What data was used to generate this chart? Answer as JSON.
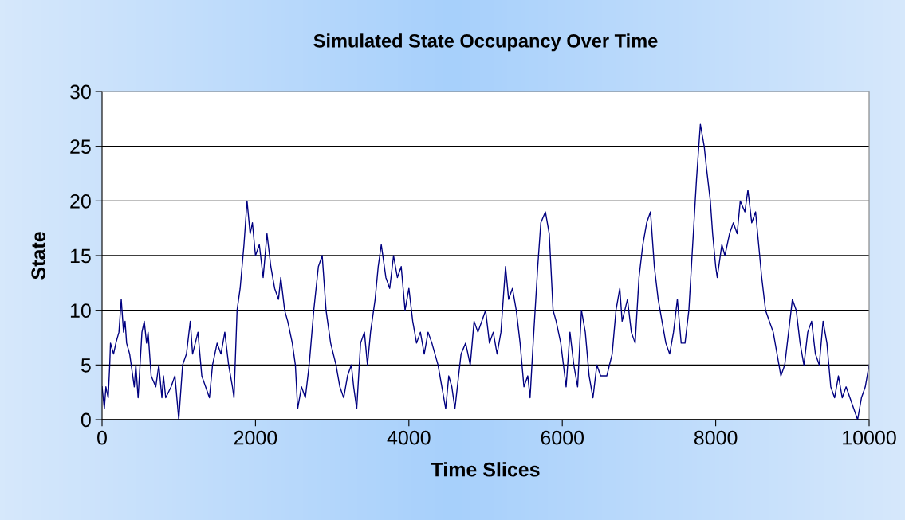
{
  "chart_data": {
    "type": "line",
    "title": "Simulated State Occupancy Over Time",
    "xlabel": "Time Slices",
    "ylabel": "State",
    "xlim": [
      0,
      10000
    ],
    "xticks": [
      0,
      2000,
      4000,
      6000,
      8000,
      10000
    ],
    "ylim": [
      0,
      30
    ],
    "yticks": [
      0,
      5,
      10,
      15,
      20,
      25,
      30
    ],
    "grid": "y",
    "marker": "none",
    "line_style": "solid",
    "series": [
      {
        "color": "#000080",
        "x": [
          0,
          30,
          50,
          80,
          100,
          110,
          150,
          180,
          220,
          240,
          250,
          280,
          300,
          320,
          360,
          400,
          420,
          440,
          470,
          520,
          550,
          580,
          600,
          640,
          700,
          740,
          780,
          800,
          830,
          900,
          950,
          1000,
          1050,
          1100,
          1150,
          1180,
          1250,
          1300,
          1350,
          1400,
          1440,
          1500,
          1550,
          1600,
          1650,
          1700,
          1720,
          1760,
          1800,
          1850,
          1870,
          1890,
          1930,
          1960,
          2000,
          2050,
          2100,
          2150,
          2200,
          2250,
          2300,
          2330,
          2380,
          2420,
          2480,
          2520,
          2550,
          2600,
          2650,
          2700,
          2760,
          2820,
          2870,
          2920,
          2980,
          3050,
          3100,
          3150,
          3200,
          3250,
          3280,
          3320,
          3370,
          3420,
          3460,
          3500,
          3560,
          3600,
          3640,
          3700,
          3750,
          3800,
          3850,
          3900,
          3950,
          4000,
          4050,
          4100,
          4150,
          4200,
          4250,
          4300,
          4380,
          4430,
          4480,
          4520,
          4560,
          4600,
          4680,
          4740,
          4800,
          4850,
          4900,
          4950,
          5000,
          5050,
          5100,
          5150,
          5200,
          5260,
          5300,
          5350,
          5400,
          5450,
          5500,
          5550,
          5580,
          5620,
          5680,
          5720,
          5780,
          5830,
          5880,
          5920,
          5980,
          6050,
          6100,
          6150,
          6200,
          6250,
          6300,
          6350,
          6400,
          6450,
          6500,
          6580,
          6650,
          6700,
          6750,
          6780,
          6850,
          6900,
          6950,
          7000,
          7050,
          7100,
          7150,
          7200,
          7250,
          7300,
          7350,
          7400,
          7450,
          7500,
          7550,
          7600,
          7650,
          7700,
          7750,
          7780,
          7800,
          7850,
          7880,
          7930,
          7960,
          8000,
          8020,
          8080,
          8120,
          8180,
          8230,
          8280,
          8320,
          8380,
          8420,
          8470,
          8520,
          8560,
          8600,
          8650,
          8700,
          8750,
          8800,
          8850,
          8900,
          9000,
          9050,
          9100,
          9150,
          9200,
          9250,
          9300,
          9350,
          9400,
          9450,
          9500,
          9550,
          9600,
          9650,
          9700,
          9750,
          9800,
          9850,
          9900,
          9950,
          10000
        ],
        "values": [
          3,
          1,
          3,
          2,
          5,
          7,
          6,
          7,
          8,
          10,
          11,
          8,
          9,
          7,
          6,
          4,
          3,
          5,
          2,
          8,
          9,
          7,
          8,
          4,
          3,
          5,
          2,
          4,
          2,
          3,
          4,
          0,
          5,
          6,
          9,
          6,
          8,
          4,
          3,
          2,
          5,
          7,
          6,
          8,
          5,
          3,
          2,
          10,
          12,
          16,
          18,
          20,
          17,
          18,
          15,
          16,
          13,
          17,
          14,
          12,
          11,
          13,
          10,
          9,
          7,
          5,
          1,
          3,
          2,
          5,
          10,
          14,
          15,
          10,
          7,
          5,
          3,
          2,
          4,
          5,
          3,
          1,
          7,
          8,
          5,
          8,
          11,
          14,
          16,
          13,
          12,
          15,
          13,
          14,
          10,
          12,
          9,
          7,
          8,
          6,
          8,
          7,
          5,
          3,
          1,
          4,
          3,
          1,
          6,
          7,
          5,
          9,
          8,
          9,
          10,
          7,
          8,
          6,
          8,
          14,
          11,
          12,
          10,
          7,
          3,
          4,
          2,
          7,
          14,
          18,
          19,
          17,
          10,
          9,
          7,
          3,
          8,
          5,
          3,
          10,
          8,
          4,
          2,
          5,
          4,
          4,
          6,
          10,
          12,
          9,
          11,
          8,
          7,
          13,
          16,
          18,
          19,
          14,
          11,
          9,
          7,
          6,
          8,
          11,
          7,
          7,
          10,
          16,
          22,
          25,
          27,
          25,
          23,
          20,
          17,
          14,
          13,
          16,
          15,
          17,
          18,
          17,
          20,
          19,
          21,
          18,
          19,
          16,
          13,
          10,
          9,
          8,
          6,
          4,
          5,
          11,
          10,
          7,
          5,
          8,
          9,
          6,
          5,
          9,
          7,
          3,
          2,
          4,
          2,
          3,
          2,
          1,
          0,
          2,
          3,
          5
        ]
      }
    ]
  }
}
